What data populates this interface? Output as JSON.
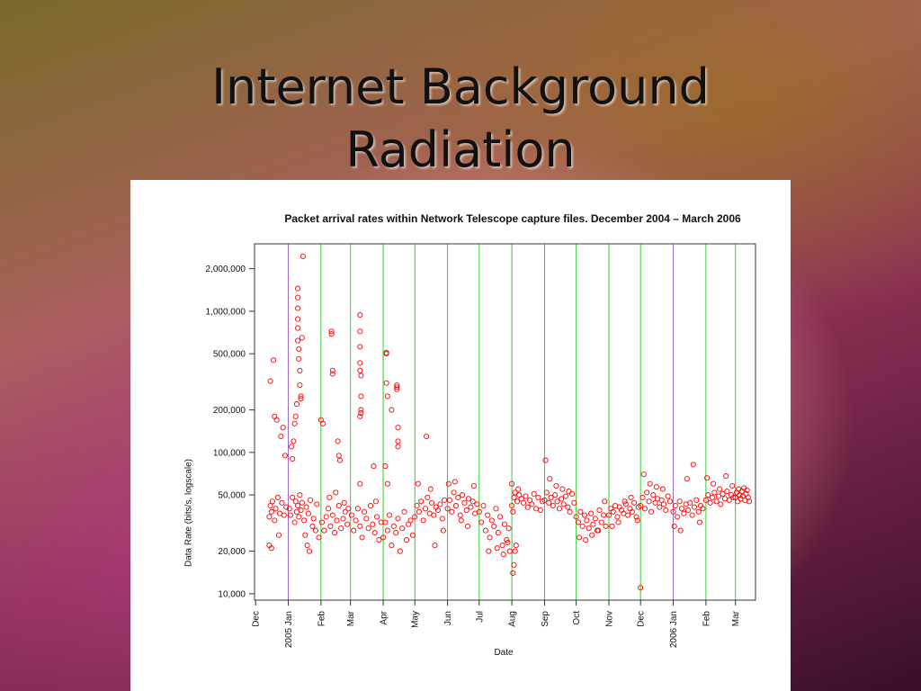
{
  "slide": {
    "title_line1": "Internet Background",
    "title_line2": "Radiation"
  },
  "chart_data": {
    "type": "scatter",
    "title": "Packet arrival rates within Network Telescope capture files. December 2004 – March 2006",
    "xlabel": "Date",
    "ylabel": "Data Rate (bits/s, logscale)",
    "y_scale": "log",
    "ylim": [
      9000,
      3000000
    ],
    "xlim": [
      "2004-11-30",
      "2006-03-20"
    ],
    "y_ticks": [
      {
        "value": 10000,
        "label": "10,000"
      },
      {
        "value": 20000,
        "label": "20,000"
      },
      {
        "value": 50000,
        "label": "50,000"
      },
      {
        "value": 100000,
        "label": "100,000"
      },
      {
        "value": 200000,
        "label": "200,000"
      },
      {
        "value": 500000,
        "label": "500,000"
      },
      {
        "value": 1000000,
        "label": "1,000,000"
      },
      {
        "value": 2000000,
        "label": "2,000,000"
      }
    ],
    "x_ticks": [
      {
        "date": "2004-12-01",
        "label": "Dec"
      },
      {
        "date": "2005-01-01",
        "label": "2005 Jan"
      },
      {
        "date": "2005-02-01",
        "label": "Feb"
      },
      {
        "date": "2005-03-01",
        "label": "Mar"
      },
      {
        "date": "2005-04-01",
        "label": "Apr"
      },
      {
        "date": "2005-05-01",
        "label": "May"
      },
      {
        "date": "2005-06-01",
        "label": "Jun"
      },
      {
        "date": "2005-07-01",
        "label": "Jul"
      },
      {
        "date": "2005-08-01",
        "label": "Aug"
      },
      {
        "date": "2005-09-01",
        "label": "Sep"
      },
      {
        "date": "2005-10-01",
        "label": "Oct"
      },
      {
        "date": "2005-11-01",
        "label": "Nov"
      },
      {
        "date": "2005-12-01",
        "label": "Dec"
      },
      {
        "date": "2006-01-01",
        "label": "2006 Jan"
      },
      {
        "date": "2006-02-01",
        "label": "Feb"
      },
      {
        "date": "2006-03-01",
        "label": "Mar"
      }
    ],
    "vertical_lines": {
      "month_color": "#33cc33",
      "year_color": "#9966cc",
      "year_dates": [
        "2005-01-01",
        "2006-01-01"
      ]
    },
    "marker_color": "#ff0000",
    "grid": false,
    "series": [
      {
        "x": [
          "2004-12-14",
          "2004-12-15",
          "2004-12-16",
          "2004-12-17",
          "2004-12-19",
          "2004-12-20",
          "2004-12-22",
          "2004-12-24",
          "2004-12-26",
          "2004-12-28",
          "2004-12-30",
          "2004-12-15",
          "2004-12-18",
          "2004-12-21",
          "2004-12-25",
          "2004-12-29",
          "2004-12-16",
          "2004-12-23",
          "2004-12-27",
          "2004-12-14",
          "2004-12-19",
          "2005-01-02",
          "2005-01-03",
          "2005-01-05",
          "2005-01-07",
          "2005-01-08",
          "2005-01-09",
          "2005-01-10",
          "2005-01-11",
          "2005-01-12",
          "2005-01-13",
          "2005-01-14",
          "2005-01-16",
          "2005-01-18",
          "2005-01-20",
          "2005-01-22",
          "2005-01-25",
          "2005-01-28",
          "2005-01-10",
          "2005-01-10",
          "2005-01-10",
          "2005-01-10",
          "2005-01-10",
          "2005-01-10",
          "2005-01-11",
          "2005-01-11",
          "2005-01-12",
          "2005-01-12",
          "2005-01-13",
          "2005-01-13",
          "2005-01-09",
          "2005-01-08",
          "2005-01-07",
          "2005-01-14",
          "2005-01-15",
          "2005-01-06",
          "2005-01-04",
          "2005-01-05",
          "2005-01-17",
          "2005-01-19",
          "2005-01-21",
          "2005-01-24",
          "2005-01-27",
          "2005-01-30",
          "2005-02-02",
          "2005-02-04",
          "2005-02-06",
          "2005-02-08",
          "2005-02-10",
          "2005-02-12",
          "2005-02-14",
          "2005-02-16",
          "2005-02-18",
          "2005-02-20",
          "2005-02-22",
          "2005-02-24",
          "2005-02-26",
          "2005-02-01",
          "2005-02-03",
          "2005-02-11",
          "2005-02-11",
          "2005-02-12",
          "2005-02-12",
          "2005-02-17",
          "2005-02-18",
          "2005-02-19",
          "2005-02-09",
          "2005-02-15",
          "2005-02-23",
          "2005-02-27",
          "2005-03-02",
          "2005-03-04",
          "2005-03-06",
          "2005-03-08",
          "2005-03-10",
          "2005-03-12",
          "2005-03-14",
          "2005-03-16",
          "2005-03-18",
          "2005-03-20",
          "2005-03-22",
          "2005-03-24",
          "2005-03-26",
          "2005-03-28",
          "2005-03-30",
          "2005-03-10",
          "2005-03-10",
          "2005-03-10",
          "2005-03-10",
          "2005-03-10",
          "2005-03-11",
          "2005-03-11",
          "2005-03-11",
          "2005-03-10",
          "2005-03-11",
          "2005-03-10",
          "2005-03-23",
          "2005-03-25",
          "2005-04-01",
          "2005-04-03",
          "2005-04-05",
          "2005-04-07",
          "2005-04-09",
          "2005-04-11",
          "2005-04-13",
          "2005-04-15",
          "2005-04-17",
          "2005-04-19",
          "2005-04-21",
          "2005-04-23",
          "2005-04-25",
          "2005-04-27",
          "2005-04-29",
          "2005-04-04",
          "2005-04-04",
          "2005-04-04",
          "2005-04-05",
          "2005-04-09",
          "2005-04-14",
          "2005-04-14",
          "2005-04-14",
          "2005-04-15",
          "2005-04-15",
          "2005-04-15",
          "2005-04-03",
          "2005-04-05",
          "2005-05-01",
          "2005-05-03",
          "2005-05-05",
          "2005-05-07",
          "2005-05-09",
          "2005-05-11",
          "2005-05-13",
          "2005-05-15",
          "2005-05-17",
          "2005-05-19",
          "2005-05-21",
          "2005-05-23",
          "2005-05-25",
          "2005-05-27",
          "2005-05-29",
          "2005-05-12",
          "2005-05-20",
          "2005-05-28",
          "2005-05-04",
          "2005-05-16",
          "2005-06-01",
          "2005-06-03",
          "2005-06-05",
          "2005-06-07",
          "2005-06-09",
          "2005-06-11",
          "2005-06-13",
          "2005-06-15",
          "2005-06-17",
          "2005-06-19",
          "2005-06-21",
          "2005-06-23",
          "2005-06-25",
          "2005-06-27",
          "2005-06-29",
          "2005-06-02",
          "2005-06-08",
          "2005-06-14",
          "2005-06-20",
          "2005-06-26",
          "2005-07-01",
          "2005-07-03",
          "2005-07-05",
          "2005-07-07",
          "2005-07-09",
          "2005-07-11",
          "2005-07-13",
          "2005-07-15",
          "2005-07-17",
          "2005-07-19",
          "2005-07-21",
          "2005-07-23",
          "2005-07-25",
          "2005-07-27",
          "2005-07-29",
          "2005-07-10",
          "2005-07-18",
          "2005-07-24",
          "2005-07-28",
          "2005-07-30",
          "2005-08-01",
          "2005-08-02",
          "2005-08-03",
          "2005-08-04",
          "2005-08-06",
          "2005-08-08",
          "2005-08-10",
          "2005-08-12",
          "2005-08-14",
          "2005-08-16",
          "2005-08-18",
          "2005-08-20",
          "2005-08-22",
          "2005-08-24",
          "2005-08-26",
          "2005-08-28",
          "2005-08-30",
          "2005-08-02",
          "2005-08-03",
          "2005-08-04",
          "2005-08-05",
          "2005-08-01",
          "2005-08-07",
          "2005-09-01",
          "2005-09-03",
          "2005-09-05",
          "2005-09-07",
          "2005-09-09",
          "2005-09-11",
          "2005-09-13",
          "2005-09-15",
          "2005-09-17",
          "2005-09-19",
          "2005-09-21",
          "2005-09-23",
          "2005-09-25",
          "2005-09-27",
          "2005-09-29",
          "2005-09-02",
          "2005-09-06",
          "2005-09-12",
          "2005-09-18",
          "2005-09-24",
          "2005-10-01",
          "2005-10-03",
          "2005-10-05",
          "2005-10-07",
          "2005-10-09",
          "2005-10-11",
          "2005-10-13",
          "2005-10-15",
          "2005-10-17",
          "2005-10-19",
          "2005-10-21",
          "2005-10-23",
          "2005-10-25",
          "2005-10-27",
          "2005-10-29",
          "2005-10-04",
          "2005-10-10",
          "2005-10-16",
          "2005-10-22",
          "2005-10-28",
          "2005-11-01",
          "2005-11-03",
          "2005-11-05",
          "2005-11-07",
          "2005-11-09",
          "2005-11-11",
          "2005-11-13",
          "2005-11-15",
          "2005-11-17",
          "2005-11-19",
          "2005-11-21",
          "2005-11-23",
          "2005-11-25",
          "2005-11-27",
          "2005-11-29",
          "2005-11-04",
          "2005-11-10",
          "2005-11-16",
          "2005-11-22",
          "2005-11-28",
          "2005-12-01",
          "2005-12-03",
          "2005-12-05",
          "2005-12-07",
          "2005-12-09",
          "2005-12-11",
          "2005-12-13",
          "2005-12-15",
          "2005-12-17",
          "2005-12-19",
          "2005-12-21",
          "2005-12-23",
          "2005-12-25",
          "2005-12-27",
          "2005-12-29",
          "2005-12-01",
          "2005-12-04",
          "2005-12-10",
          "2005-12-16",
          "2005-12-22",
          "2006-01-01",
          "2006-01-03",
          "2006-01-05",
          "2006-01-07",
          "2006-01-09",
          "2006-01-11",
          "2006-01-13",
          "2006-01-15",
          "2006-01-17",
          "2006-01-19",
          "2006-01-21",
          "2006-01-23",
          "2006-01-25",
          "2006-01-27",
          "2006-01-29",
          "2006-01-02",
          "2006-01-08",
          "2006-01-14",
          "2006-01-20",
          "2006-01-26",
          "2006-02-01",
          "2006-02-03",
          "2006-02-05",
          "2006-02-07",
          "2006-02-09",
          "2006-02-11",
          "2006-02-13",
          "2006-02-15",
          "2006-02-17",
          "2006-02-19",
          "2006-02-21",
          "2006-02-23",
          "2006-02-25",
          "2006-02-27",
          "2006-02-02",
          "2006-02-08",
          "2006-02-14",
          "2006-02-20",
          "2006-02-26",
          "2006-03-01",
          "2006-03-02",
          "2006-03-03",
          "2006-03-04",
          "2006-03-05",
          "2006-03-06",
          "2006-03-07",
          "2006-03-08",
          "2006-03-09",
          "2006-03-10",
          "2006-03-11",
          "2006-03-12",
          "2006-03-13",
          "2006-03-14"
        ],
        "y": [
          35000,
          42000,
          38000,
          45000,
          33000,
          40000,
          48000,
          37000,
          44000,
          36000,
          41000,
          320000,
          450000,
          170000,
          130000,
          95000,
          21000,
          26000,
          150000,
          22000,
          180000,
          40000,
          36000,
          48000,
          32000,
          45000,
          38000,
          42000,
          35000,
          50000,
          39000,
          44000,
          33000,
          41000,
          37000,
          46000,
          34000,
          43000,
          1450000,
          1250000,
          1050000,
          880000,
          760000,
          620000,
          540000,
          460000,
          380000,
          300000,
          250000,
          240000,
          220000,
          180000,
          160000,
          650000,
          2450000,
          120000,
          110000,
          90000,
          26000,
          22000,
          20000,
          30000,
          28000,
          25000,
          32000,
          28000,
          35000,
          40000,
          30000,
          36000,
          27000,
          33000,
          42000,
          29000,
          34000,
          38000,
          31000,
          170000,
          160000,
          720000,
          690000,
          380000,
          360000,
          120000,
          95000,
          88000,
          48000,
          52000,
          44000,
          40000,
          36000,
          28000,
          33000,
          40000,
          30000,
          25000,
          38000,
          34000,
          29000,
          42000,
          31000,
          27000,
          35000,
          24000,
          32000,
          940000,
          720000,
          560000,
          430000,
          380000,
          350000,
          250000,
          200000,
          180000,
          190000,
          60000,
          80000,
          45000,
          25000,
          32000,
          28000,
          36000,
          22000,
          30000,
          27000,
          34000,
          20000,
          29000,
          38000,
          24000,
          31000,
          33000,
          26000,
          510000,
          500000,
          310000,
          250000,
          200000,
          280000,
          300000,
          290000,
          150000,
          120000,
          110000,
          80000,
          60000,
          35000,
          42000,
          38000,
          45000,
          33000,
          40000,
          48000,
          37000,
          44000,
          36000,
          41000,
          39000,
          43000,
          34000,
          46000,
          130000,
          22000,
          28000,
          60000,
          55000,
          40000,
          46000,
          38000,
          52000,
          42000,
          48000,
          36000,
          50000,
          44000,
          39000,
          47000,
          41000,
          45000,
          37000,
          43000,
          60000,
          62000,
          33000,
          30000,
          58000,
          38000,
          32000,
          42000,
          28000,
          36000,
          25000,
          33000,
          30000,
          40000,
          27000,
          35000,
          22000,
          31000,
          24000,
          29000,
          20000,
          21000,
          19000,
          23000,
          20000,
          42000,
          38000,
          48000,
          52000,
          45000,
          50000,
          47000,
          44000,
          49000,
          41000,
          46000,
          43000,
          51000,
          40000,
          48000,
          39000,
          45000,
          14000,
          16000,
          20000,
          22000,
          60000,
          55000,
          46000,
          52000,
          44000,
          48000,
          42000,
          50000,
          45000,
          40000,
          47000,
          43000,
          49000,
          41000,
          38000,
          51000,
          44000,
          88000,
          65000,
          58000,
          55000,
          53000,
          35000,
          32000,
          38000,
          30000,
          36000,
          33000,
          29000,
          37000,
          31000,
          34000,
          28000,
          39000,
          32000,
          36000,
          30000,
          25000,
          24000,
          26000,
          28000,
          45000,
          36000,
          40000,
          38000,
          42000,
          35000,
          41000,
          39000,
          37000,
          43000,
          36000,
          40000,
          38000,
          44000,
          35000,
          41000,
          30000,
          32000,
          45000,
          48000,
          33000,
          42000,
          48000,
          40000,
          52000,
          45000,
          38000,
          50000,
          44000,
          47000,
          41000,
          46000,
          43000,
          39000,
          49000,
          45000,
          11000,
          70000,
          60000,
          57000,
          55000,
          38000,
          42000,
          35000,
          45000,
          40000,
          37000,
          43000,
          39000,
          44000,
          36000,
          41000,
          46000,
          38000,
          42000,
          40000,
          30000,
          28000,
          65000,
          82000,
          32000,
          46000,
          50000,
          44000,
          48000,
          52000,
          45000,
          49000,
          43000,
          51000,
          47000,
          53000,
          46000,
          50000,
          48000,
          66000,
          60000,
          55000,
          68000,
          58000,
          48000,
          52000,
          45000,
          55000,
          50000,
          47000,
          53000,
          49000,
          56000,
          46000,
          51000,
          54000,
          48000,
          45000
        ]
      }
    ]
  }
}
